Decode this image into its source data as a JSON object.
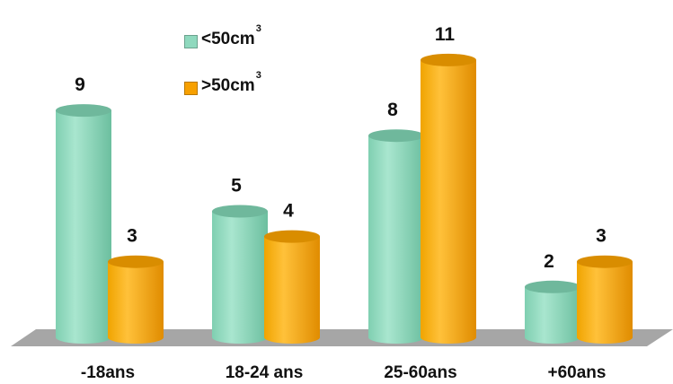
{
  "chart_data": {
    "type": "bar",
    "categories": [
      "-18ans",
      "18-24 ans",
      "25-60ans",
      "+60ans"
    ],
    "series": [
      {
        "name_prefix": "<50cm",
        "name_sup": "3",
        "color": "#8FD9BE",
        "values": [
          9,
          5,
          8,
          2
        ]
      },
      {
        "name_prefix": ">50cm",
        "name_sup": "3",
        "color": "#F7A000",
        "values": [
          3,
          4,
          11,
          3
        ]
      }
    ],
    "ylim": [
      0,
      11
    ],
    "grid": false,
    "legend_position": "top-left",
    "bar_style": "3d-cylinder"
  }
}
